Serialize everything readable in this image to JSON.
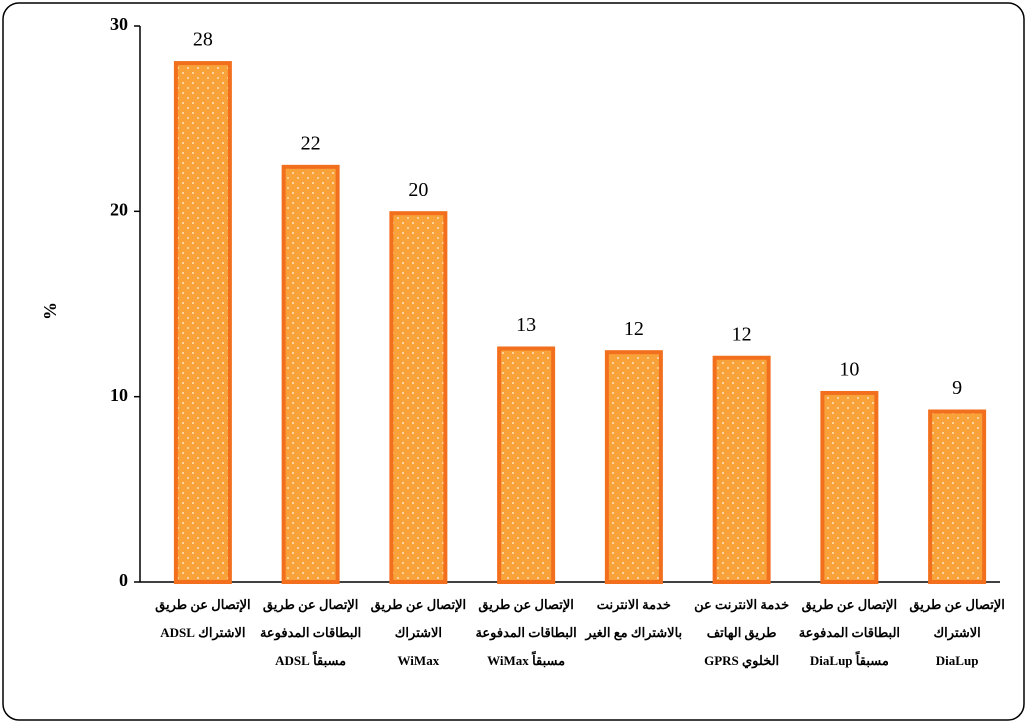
{
  "chart_data": {
    "type": "bar",
    "y_label": "%",
    "categories": [
      [
        "الإتصال عن طريق",
        "الاشتراك ADSL"
      ],
      [
        "الإتصال عن طريق",
        "البطاقات المدفوعة",
        "مسبقاً ADSL"
      ],
      [
        "الإتصال عن طريق",
        "الاشتراك",
        "WiMax"
      ],
      [
        "الإتصال عن طريق",
        "البطاقات المدفوعة",
        "مسبقاً WiMax"
      ],
      [
        "خدمة الانترنت",
        "بالاشتراك مع الغير"
      ],
      [
        "خدمة الانترنت عن",
        "طريق الهاتف",
        "الخلوي GPRS"
      ],
      [
        "الإتصال عن طريق",
        "البطاقات المدفوعة",
        "مسبقاً DiaLup"
      ],
      [
        "الإتصال عن طريق",
        "الاشتراك",
        "DiaLup"
      ]
    ],
    "values": [
      28.0,
      22.4,
      19.9,
      12.6,
      12.4,
      12.1,
      10.2,
      9.2
    ],
    "value_labels": [
      "28",
      "22",
      "20",
      "13",
      "12",
      "12",
      "10",
      "9"
    ],
    "color": "#f9a23a",
    "edge_color": "#f26f1d",
    "ylim": [
      0,
      30
    ],
    "yticks": [
      0,
      10,
      20,
      30
    ],
    "grid": false
  }
}
